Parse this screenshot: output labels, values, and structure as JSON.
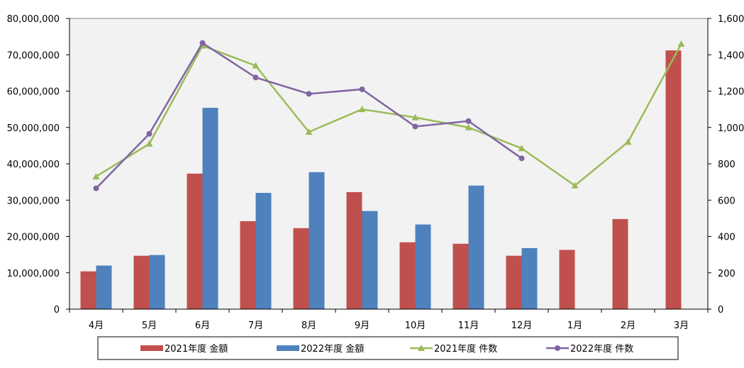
{
  "chart_data": {
    "type": "bar",
    "categories": [
      "4月",
      "5月",
      "6月",
      "7月",
      "8月",
      "9月",
      "10月",
      "11月",
      "12月",
      "1月",
      "2月",
      "3月"
    ],
    "y_left": {
      "min": 0,
      "max": 80000000,
      "step": 10000000,
      "tick_labels": [
        "0",
        "10,000,000",
        "20,000,000",
        "30,000,000",
        "40,000,000",
        "50,000,000",
        "60,000,000",
        "70,000,000",
        "80,000,000"
      ]
    },
    "y_right": {
      "min": 0,
      "max": 1600,
      "step": 200,
      "tick_labels": [
        "0",
        "200",
        "400",
        "600",
        "800",
        "1,000",
        "1,200",
        "1,400",
        "1,600"
      ]
    },
    "grid": false,
    "legend_position": "bottom",
    "series": [
      {
        "name": "2021年度 金額",
        "kind": "bar",
        "axis": "left",
        "color": "#c0504d",
        "values": [
          10400000,
          14700000,
          37300000,
          24200000,
          22300000,
          32200000,
          18400000,
          18000000,
          14700000,
          16300000,
          24800000,
          71200000
        ]
      },
      {
        "name": "2022年度 金額",
        "kind": "bar",
        "axis": "left",
        "color": "#4f81bd",
        "values": [
          12000000,
          14900000,
          55400000,
          32000000,
          37700000,
          27000000,
          23300000,
          34000000,
          16800000,
          null,
          null,
          null
        ]
      },
      {
        "name": "2021年度 件数",
        "kind": "line",
        "axis": "right",
        "color": "#9bbb59",
        "marker": "triangle",
        "values": [
          730,
          910,
          1450,
          1340,
          975,
          1100,
          1055,
          1000,
          885,
          680,
          920,
          1460
        ]
      },
      {
        "name": "2022年度 件数",
        "kind": "line",
        "axis": "right",
        "color": "#8064a2",
        "marker": "circle",
        "values": [
          665,
          965,
          1465,
          1275,
          1185,
          1210,
          1005,
          1035,
          830,
          null,
          null,
          null
        ]
      }
    ]
  }
}
